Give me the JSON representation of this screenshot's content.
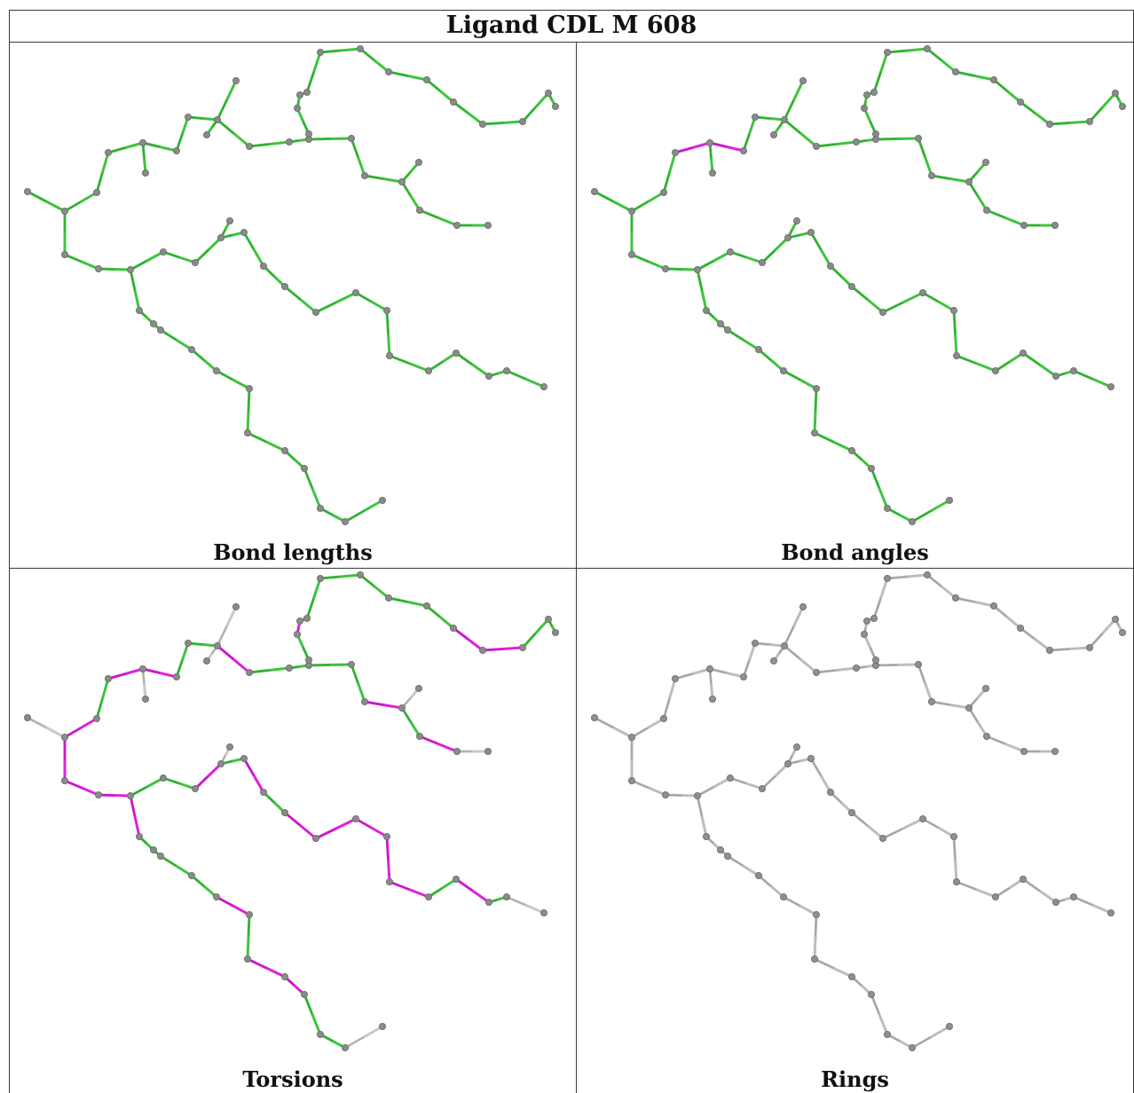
{
  "title": "Ligand CDL M 608",
  "captions": {
    "bond_lengths": "Bond lengths",
    "bond_angles": "Bond angles",
    "torsions": "Torsions",
    "rings": "Rings"
  },
  "colors": {
    "good_bond": "#3ec43e",
    "outlier": "#dd22dd",
    "unassessed": "#c9c9c9",
    "atom": "#8a8a8a",
    "border": "#3a3a3a"
  }
}
